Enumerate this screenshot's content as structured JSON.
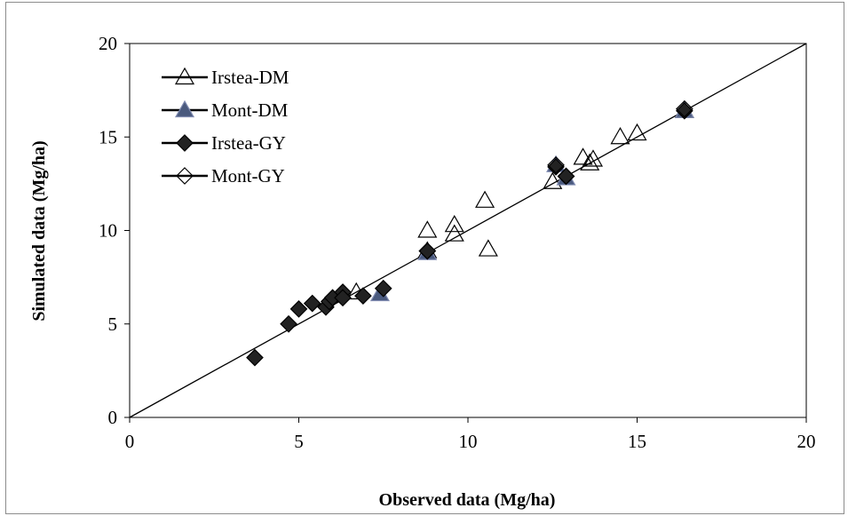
{
  "chart_data": {
    "type": "scatter",
    "xlabel": "Observed data (Mg/ha)",
    "ylabel": "Simulated data (Mg/ha)",
    "xlim": [
      0,
      20
    ],
    "ylim": [
      0,
      20
    ],
    "x_ticks": [
      "0",
      "5",
      "10",
      "15",
      "20"
    ],
    "y_ticks": [
      "0",
      "5",
      "10",
      "15",
      "20"
    ],
    "grid": false,
    "legend_position": "top-left",
    "reference_line": {
      "from": [
        0,
        0
      ],
      "to": [
        20,
        20
      ],
      "color": "#000000"
    },
    "series": [
      {
        "name": "Irstea-DM",
        "marker": "triangle-open",
        "color": "#000000",
        "points": [
          [
            6.7,
            6.7
          ],
          [
            8.8,
            10.0
          ],
          [
            8.8,
            8.9
          ],
          [
            9.6,
            10.3
          ],
          [
            9.6,
            9.8
          ],
          [
            10.5,
            11.6
          ],
          [
            10.6,
            9.0
          ],
          [
            12.5,
            12.6
          ],
          [
            13.4,
            13.9
          ],
          [
            13.6,
            13.6
          ],
          [
            13.7,
            13.8
          ],
          [
            14.5,
            15.0
          ],
          [
            15.0,
            15.2
          ],
          [
            16.4,
            16.4
          ]
        ]
      },
      {
        "name": "Mont-DM",
        "marker": "triangle-filled",
        "color": "#4a5a7e",
        "points": [
          [
            7.4,
            6.6
          ],
          [
            8.8,
            8.8
          ],
          [
            12.6,
            13.5
          ],
          [
            12.9,
            12.8
          ],
          [
            16.4,
            16.4
          ]
        ]
      },
      {
        "name": "Irstea-GY",
        "marker": "diamond-filled",
        "color": "#222222",
        "points": [
          [
            3.7,
            3.2
          ],
          [
            4.7,
            5.0
          ],
          [
            5.0,
            5.8
          ],
          [
            5.4,
            6.1
          ],
          [
            5.8,
            5.9
          ],
          [
            5.9,
            6.2
          ],
          [
            6.0,
            6.4
          ],
          [
            6.3,
            6.7
          ],
          [
            6.3,
            6.4
          ],
          [
            6.9,
            6.5
          ],
          [
            7.5,
            6.9
          ],
          [
            8.8,
            8.9
          ],
          [
            12.6,
            13.4
          ],
          [
            12.9,
            12.9
          ],
          [
            16.4,
            16.4
          ]
        ]
      },
      {
        "name": "Mont-GY",
        "marker": "diamond-open",
        "color": "#000000",
        "points": [
          [
            8.8,
            8.9
          ],
          [
            12.6,
            13.5
          ],
          [
            12.9,
            12.9
          ],
          [
            16.4,
            16.5
          ]
        ]
      }
    ]
  }
}
